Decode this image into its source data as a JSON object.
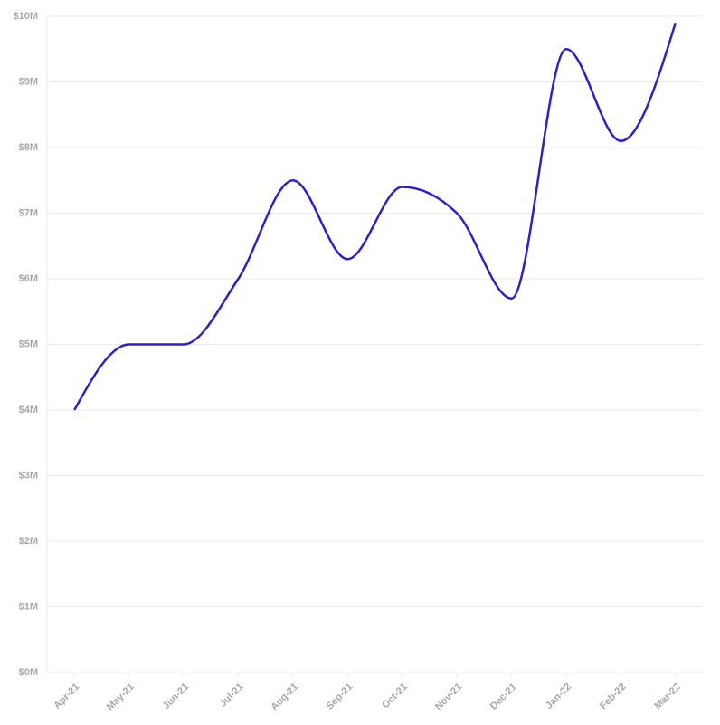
{
  "chart_data": {
    "type": "line",
    "categories": [
      "Apr-21",
      "May-21",
      "Jun-21",
      "Jul-21",
      "Aug-21",
      "Sep-21",
      "Oct-21",
      "Nov-21",
      "Dec-21",
      "Jan-22",
      "Feb-22",
      "Mar-22"
    ],
    "values": [
      4000000,
      5000000,
      5000000,
      6000000,
      7500000,
      6300000,
      7400000,
      7000000,
      5700000,
      9500000,
      8100000,
      9900000
    ],
    "color": "#2d1fcc",
    "ylim": [
      0,
      10000000
    ],
    "yticks": [
      {
        "value": 0,
        "label": "$0M"
      },
      {
        "value": 1000000,
        "label": "$1M"
      },
      {
        "value": 2000000,
        "label": "$2M"
      },
      {
        "value": 3000000,
        "label": "$3M"
      },
      {
        "value": 4000000,
        "label": "$4M"
      },
      {
        "value": 5000000,
        "label": "$5M"
      },
      {
        "value": 6000000,
        "label": "$6M"
      },
      {
        "value": 7000000,
        "label": "$7M"
      },
      {
        "value": 8000000,
        "label": "$8M"
      },
      {
        "value": 9000000,
        "label": "$9M"
      },
      {
        "value": 10000000,
        "label": "$10M"
      }
    ],
    "grid": true
  }
}
